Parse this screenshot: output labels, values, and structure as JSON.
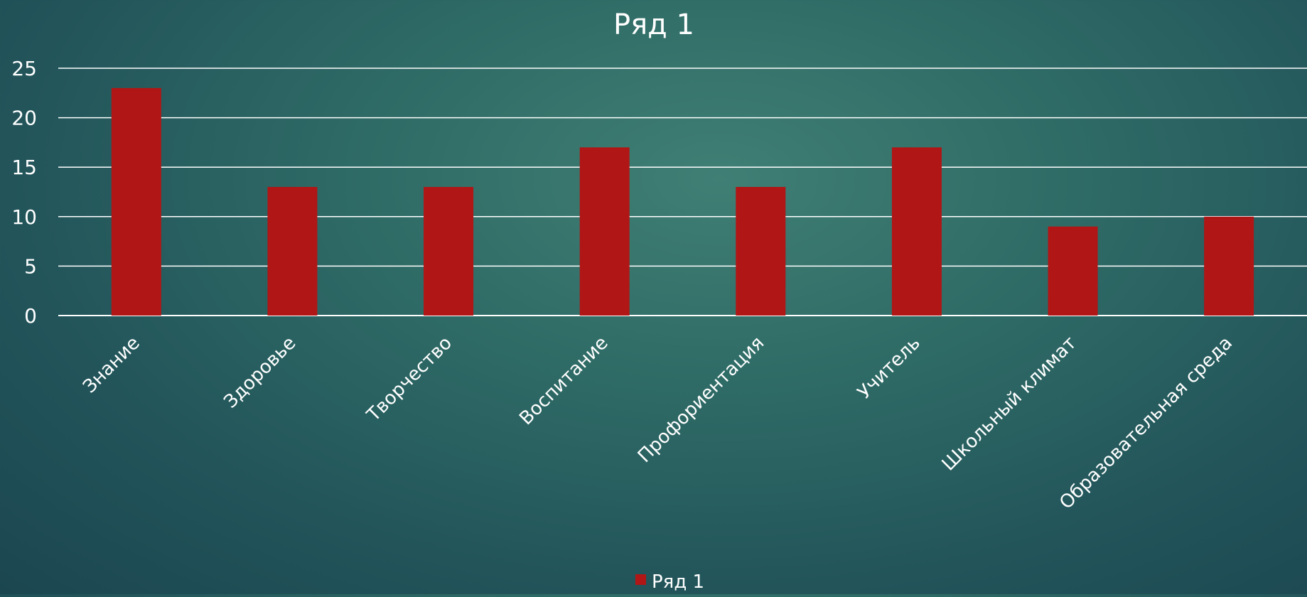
{
  "chart_data": {
    "type": "bar",
    "title": "Ряд 1",
    "xlabel": "",
    "ylabel": "",
    "categories": [
      "Знание",
      "Здоровье",
      "Творчество",
      "Воспитание",
      "Профориентация",
      "Учитель",
      "Школьный климат",
      "Образовательная среда"
    ],
    "series": [
      {
        "name": "Ряд 1",
        "values": [
          23,
          13,
          13,
          17,
          13,
          17,
          9,
          10
        ],
        "color": "#b01616"
      }
    ],
    "ylim": [
      0,
      25
    ],
    "yticks": [
      0,
      5,
      10,
      15,
      20,
      25
    ],
    "grid": true,
    "legend": "bottom",
    "colors": {
      "grid": "#ffffff",
      "text": "#ffffff"
    }
  }
}
